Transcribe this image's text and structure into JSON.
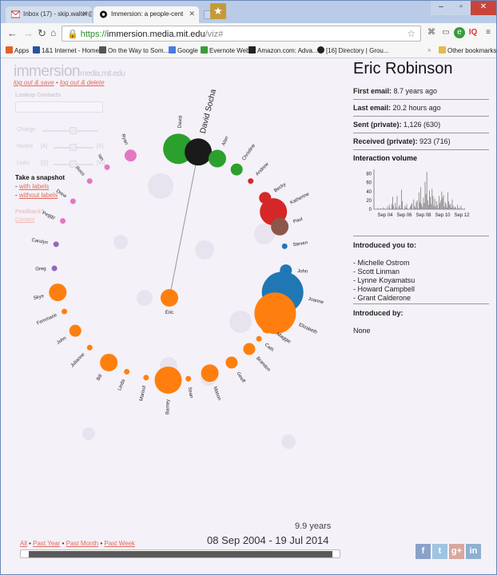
{
  "browser": {
    "tabs": [
      {
        "label": "Inbox (17) - skip.walter@",
        "active": false
      },
      {
        "label": "Immersion: a people-cent",
        "active": true
      }
    ],
    "address": {
      "scheme": "https://",
      "host": "immersion.media.mit.edu",
      "path": "/viz#"
    },
    "bookmarks": [
      "Apps",
      "1&1 Internet - Home",
      "On the Way to Som...",
      "Google",
      "Evernote Web",
      "Amazon.com: Adva...",
      "[16] Directory | Grou..."
    ],
    "other_bookmarks": "Other bookmarks",
    "colors": {
      "tabstrip": "#b9cbe6",
      "close": "#c8443a"
    }
  },
  "left": {
    "logo_main": "immersion",
    "logo_sub": "media.mit.edu",
    "logout_save": "log out & save",
    "logout_delete": "log out & delete",
    "lookup_label": "Lookup Contacts",
    "charge_label": "Charge",
    "nodes_label": "Nodes",
    "nodes_left_key": "[A]",
    "nodes_right_key": "[S]",
    "links_label": "Links",
    "links_left_key": "[Q]",
    "links_right_key": "[W]",
    "snapshot_title": "Take a snapshot",
    "snapshot_with": "with labels",
    "snapshot_without": "without labels",
    "feedback_label": "Feedback?",
    "contact_label": "Contact"
  },
  "graph": {
    "center": "Eric",
    "highlight": "David Socha",
    "nodes": [
      {
        "name": "David",
        "color": "#2ca02c",
        "angle": -86,
        "size": "xl"
      },
      {
        "name": "David Socha",
        "color": "#1a1a1a",
        "angle": -76,
        "size": "l",
        "highlight": true
      },
      {
        "name": "Alan",
        "color": "#2ca02c",
        "angle": -66,
        "size": "m"
      },
      {
        "name": "Christine",
        "color": "#2ca02c",
        "angle": -55,
        "size": "s"
      },
      {
        "name": "Andrew",
        "color": "#d62728",
        "angle": -46,
        "size": "xs"
      },
      {
        "name": "Becky",
        "color": "#d62728",
        "angle": -35,
        "size": "s"
      },
      {
        "name": "Katherine",
        "color": "#d62728",
        "angle": -27,
        "size": "l"
      },
      {
        "name": "Paul",
        "color": "#8c564b",
        "angle": -19,
        "size": "m"
      },
      {
        "name": "Steven",
        "color": "#1f77b4",
        "angle": -9,
        "size": "xs"
      },
      {
        "name": "John",
        "color": "#1f77b4",
        "angle": 3,
        "size": "s"
      },
      {
        "name": "Joanne",
        "color": "#1f77b4",
        "angle": 14,
        "size": "xxl"
      },
      {
        "name": "Elizabeth",
        "color": "#ff7f0e",
        "angle": 25,
        "size": "xxl"
      },
      {
        "name": "Maggie",
        "color": "#ff7f0e",
        "angle": 33,
        "size": "s"
      },
      {
        "name": "Cath",
        "color": "#ff7f0e",
        "angle": 40,
        "size": "xs"
      },
      {
        "name": "Brandon",
        "color": "#ff7f0e",
        "angle": 47,
        "size": "s"
      },
      {
        "name": "Geoff",
        "color": "#ff7f0e",
        "angle": 58,
        "size": "s"
      },
      {
        "name": "Mason",
        "color": "#ff7f0e",
        "angle": 70,
        "size": "m"
      },
      {
        "name": "Sean",
        "color": "#ff7f0e",
        "angle": 81,
        "size": "xs"
      },
      {
        "name": "Barney",
        "color": "#ff7f0e",
        "angle": 91,
        "size": "l"
      },
      {
        "name": "Marisol",
        "color": "#ff7f0e",
        "angle": 102,
        "size": "xs"
      },
      {
        "name": "Linda",
        "color": "#ff7f0e",
        "angle": 112,
        "size": "xs"
      },
      {
        "name": "Bill",
        "color": "#ff7f0e",
        "angle": 122,
        "size": "m"
      },
      {
        "name": "Julianne",
        "color": "#ff7f0e",
        "angle": 134,
        "size": "xs"
      },
      {
        "name": "John",
        "color": "#ff7f0e",
        "angle": 145,
        "size": "s"
      },
      {
        "name": "Femmarie",
        "color": "#ff7f0e",
        "angle": 156,
        "size": "xs"
      },
      {
        "name": "Skye",
        "color": "#ff7f0e",
        "angle": 166,
        "size": "m"
      },
      {
        "name": "Greg",
        "color": "#9467bd",
        "angle": 178,
        "size": "xs"
      },
      {
        "name": "Carolyn",
        "color": "#9467bd",
        "angle": 190,
        "size": "xs"
      },
      {
        "name": "Peggy",
        "color": "#e377c2",
        "angle": 202,
        "size": "xs"
      },
      {
        "name": "Drew",
        "color": "#e377c2",
        "angle": 213,
        "size": "xs"
      },
      {
        "name": "Ross",
        "color": "#e377c2",
        "angle": 226,
        "size": "xs"
      },
      {
        "name": "Ian",
        "color": "#e377c2",
        "angle": 237,
        "size": "xs"
      },
      {
        "name": "Ryan",
        "color": "#e377c2",
        "angle": 250,
        "size": "s"
      }
    ]
  },
  "timeline": {
    "years": "9.9 years",
    "range": "08 Sep 2004 - 19 Jul 2014",
    "links": [
      "All",
      "Past Year",
      "Past Month",
      "Past Week"
    ]
  },
  "profile": {
    "name": "Eric Robinson",
    "first_email_label": "First email:",
    "first_email_value": "8.7 years ago",
    "last_email_label": "Last email:",
    "last_email_value": "20.2 hours ago",
    "sent_label": "Sent (private):",
    "sent_value": "1,126 (630)",
    "received_label": "Received (private):",
    "received_value": "923 (716)",
    "interaction_title": "Interaction volume",
    "introduced_you_to_title": "Introduced you to:",
    "introduced_you_to": [
      "Michelle Ostrom",
      "Scott Linman",
      "Lynne Koyamatsu",
      "Howard Campbell",
      "Grant Calderone"
    ],
    "introduced_by_title": "Introduced by:",
    "introduced_by_value": "None"
  },
  "chart_data": {
    "type": "bar",
    "title": "Interaction volume",
    "x_ticks": [
      "Sep 04",
      "Sep 06",
      "Sep 08",
      "Sep 10",
      "Sep 12"
    ],
    "y_ticks": [
      0,
      20,
      40,
      60,
      80
    ],
    "ylim": [
      0,
      90
    ],
    "values": [
      0,
      0,
      0,
      0,
      3,
      0,
      0,
      2,
      0,
      0,
      4,
      0,
      2,
      0,
      0,
      6,
      0,
      10,
      3,
      0,
      12,
      28,
      8,
      0,
      14,
      4,
      30,
      0,
      6,
      10,
      2,
      44,
      18,
      0,
      0,
      8,
      4,
      12,
      2,
      0,
      0,
      6,
      10,
      14,
      0,
      22,
      8,
      4,
      16,
      20,
      2,
      38,
      16,
      50,
      12,
      6,
      26,
      14,
      62,
      34,
      84,
      20,
      10,
      42,
      28,
      12,
      46,
      30,
      8,
      24,
      6,
      18,
      10,
      2,
      30,
      14,
      20,
      40,
      26,
      32,
      6,
      16,
      12,
      4,
      38,
      18,
      10,
      12,
      4,
      22,
      8,
      2,
      6,
      4,
      0,
      10,
      2,
      4,
      0,
      8,
      2,
      0,
      0,
      2
    ]
  },
  "social": [
    "f",
    "t",
    "g+",
    "in"
  ]
}
